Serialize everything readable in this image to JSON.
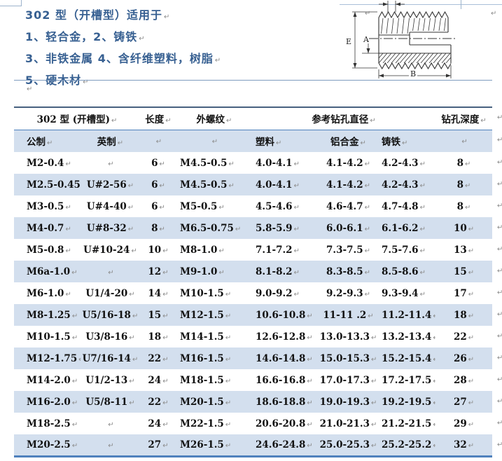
{
  "intro": {
    "title": "302 型（开槽型）适用于",
    "items": [
      "1、轻合金，2、铸铁",
      "3、非铁金属 4、含纤维塑料，树脂",
      "5、硬木材"
    ]
  },
  "diagram": {
    "label_e": "E",
    "label_a": "A",
    "label_b": "B"
  },
  "marks": {
    "pilcrow": "↵"
  },
  "table": {
    "header_row1": {
      "group": "302 型 (开槽型)",
      "length": "长度",
      "ext_thread": "外螺纹",
      "drill_dia": "参考钻孔直径",
      "drill_depth": "钻孔深度"
    },
    "header_row2": {
      "metric": "公制",
      "imperial": "英制",
      "plastic": "塑料",
      "aluminum": "铝合金",
      "cast_iron": "铸铁"
    },
    "columns": [
      "metric",
      "imperial",
      "length",
      "ext-thread",
      "plastic",
      "aluminum",
      "cast-iron",
      "depth"
    ],
    "rows": [
      [
        "M2-0.4",
        "",
        "6",
        "M4.5-0.5",
        "4.0-4.1",
        "4.1-4.2",
        "4.2-4.3",
        "8"
      ],
      [
        "M2.5-0.45",
        "U#2-56",
        "6",
        "M4.5-0.5",
        "4.0-4.1",
        "4.1-4.2",
        "4.2-4.3",
        "8"
      ],
      [
        "M3-0.5",
        "U#4-40",
        "6",
        "M5-0.5",
        "4.5-4.6",
        "4.6-4.7",
        "4.7-4.8",
        "8"
      ],
      [
        "M4-0.7",
        "U#8-32",
        "8",
        "M6.5-0.75",
        "5.8-5.9",
        "6.0-6.1",
        "6.1-6.2",
        "10"
      ],
      [
        "M5-0.8",
        "U#10-24",
        "10",
        "M8-1.0",
        "7.1-7.2",
        "7.3-7.5",
        "7.5-7.6",
        "13"
      ],
      [
        "M6a-1.0",
        "",
        "12",
        "M9-1.0",
        "8.1-8.2",
        "8.3-8.5",
        "8.5-8.6",
        "15"
      ],
      [
        "M6-1.0",
        "U1/4-20",
        "14",
        "M10-1.5",
        "9.0-9.2",
        "9.2-9.3",
        "9.3-9.4",
        "17"
      ],
      [
        "M8-1.25",
        "U5/16-18",
        "15",
        "M12-1.5",
        "10.6-10.8",
        "11-11 .2",
        "11.2-11.4",
        "18"
      ],
      [
        "M10-1.5",
        "U3/8-16",
        "18",
        "M14-1.5",
        "12.6-12.8",
        "13.0-13.3",
        "13.2-13.4",
        "22"
      ],
      [
        "M12-1.75",
        "U7/16-14",
        "22",
        "M16-1.5",
        "14.6-14.8",
        "15.0-15.3",
        "15.2-15.4",
        "26"
      ],
      [
        "M14-2.0",
        "U1/2-13",
        "24",
        "M18-1.5",
        "16.6-16.8",
        "17.0-17.3",
        "17.2-17.5",
        "28"
      ],
      [
        "M16-2.0",
        "U5/8-11",
        "22",
        "M20-1.5",
        "18.6-18.8",
        "19.0-19.3",
        "19.2-19.5",
        "27"
      ],
      [
        "M18-2.5",
        "",
        "24",
        "M22-1.5",
        "20.6-20.8",
        "21.0-21.3",
        "21.2-21.5",
        "29"
      ],
      [
        "M20-2.5",
        "",
        "27",
        "M26-1.5",
        "24.6-24.8",
        "25.0-25.3",
        "25.2-25.2",
        "32"
      ]
    ]
  },
  "colors": {
    "accent_border": "#4F81BD",
    "row_band": "#D3DFEE",
    "intro_text": "#365F91",
    "pilcrow_gray": "#8C8C8C"
  }
}
